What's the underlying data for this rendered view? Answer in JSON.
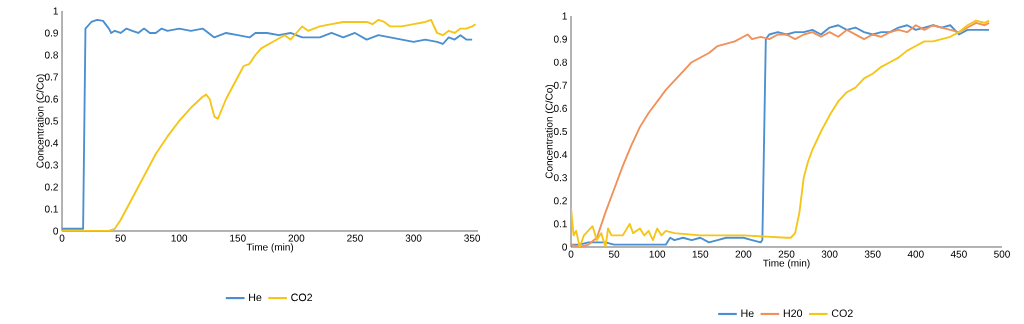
{
  "chart_data": [
    {
      "type": "line",
      "xlabel": "Time (min)",
      "ylabel": "Concentration (C/Co)",
      "xlim": [
        0,
        355
      ],
      "ylim": [
        0,
        1
      ],
      "xticks": [
        0,
        50,
        100,
        150,
        200,
        250,
        300,
        350
      ],
      "yticks": [
        0,
        0.1,
        0.2,
        0.3,
        0.4,
        0.5,
        0.6,
        0.7,
        0.8,
        0.9,
        1
      ],
      "grid": false,
      "legend": "bottom",
      "marker": "none",
      "line_style": "solid",
      "series": [
        {
          "name": "He",
          "color": "#4a90d0",
          "x": [
            0,
            10,
            18,
            20,
            25,
            30,
            35,
            40,
            42,
            45,
            50,
            55,
            60,
            65,
            70,
            75,
            80,
            85,
            90,
            100,
            110,
            120,
            125,
            130,
            140,
            150,
            160,
            165,
            175,
            185,
            195,
            205,
            220,
            230,
            240,
            250,
            260,
            270,
            280,
            290,
            300,
            310,
            320,
            325,
            330,
            335,
            340,
            345,
            350
          ],
          "values": [
            0.01,
            0.01,
            0.01,
            0.92,
            0.95,
            0.96,
            0.955,
            0.92,
            0.9,
            0.91,
            0.9,
            0.92,
            0.91,
            0.9,
            0.92,
            0.9,
            0.9,
            0.92,
            0.91,
            0.92,
            0.91,
            0.92,
            0.9,
            0.88,
            0.9,
            0.89,
            0.88,
            0.9,
            0.9,
            0.89,
            0.9,
            0.88,
            0.88,
            0.9,
            0.88,
            0.9,
            0.87,
            0.89,
            0.88,
            0.87,
            0.86,
            0.87,
            0.86,
            0.85,
            0.88,
            0.87,
            0.89,
            0.87,
            0.87
          ]
        },
        {
          "name": "CO2",
          "color": "#f5c518",
          "x": [
            0,
            20,
            40,
            45,
            50,
            60,
            70,
            80,
            90,
            100,
            110,
            120,
            123,
            126,
            130,
            133,
            140,
            150,
            155,
            160,
            165,
            170,
            180,
            190,
            195,
            200,
            205,
            210,
            220,
            230,
            240,
            250,
            260,
            265,
            270,
            275,
            280,
            290,
            300,
            310,
            315,
            320,
            325,
            330,
            335,
            340,
            345,
            350,
            353
          ],
          "values": [
            0,
            0,
            0,
            0.01,
            0.05,
            0.15,
            0.25,
            0.35,
            0.43,
            0.5,
            0.56,
            0.61,
            0.62,
            0.6,
            0.52,
            0.51,
            0.6,
            0.7,
            0.75,
            0.76,
            0.8,
            0.83,
            0.86,
            0.89,
            0.87,
            0.9,
            0.93,
            0.91,
            0.93,
            0.94,
            0.95,
            0.95,
            0.95,
            0.94,
            0.96,
            0.95,
            0.93,
            0.93,
            0.94,
            0.95,
            0.96,
            0.9,
            0.89,
            0.91,
            0.9,
            0.92,
            0.92,
            0.93,
            0.94
          ]
        }
      ]
    },
    {
      "type": "line",
      "xlabel": "Time (min)",
      "ylabel": "Concentration (C/Co)",
      "xlim": [
        0,
        500
      ],
      "ylim": [
        0,
        1
      ],
      "xticks": [
        0,
        50,
        100,
        150,
        200,
        250,
        300,
        350,
        400,
        450,
        500
      ],
      "yticks": [
        0,
        0.1,
        0.2,
        0.3,
        0.4,
        0.5,
        0.6,
        0.7,
        0.8,
        0.9,
        1
      ],
      "grid": false,
      "legend": "bottom",
      "marker": "none",
      "line_style": "solid",
      "series": [
        {
          "name": "He",
          "color": "#4a90d0",
          "x": [
            0,
            10,
            20,
            30,
            40,
            50,
            100,
            110,
            115,
            120,
            130,
            140,
            150,
            160,
            170,
            180,
            200,
            210,
            220,
            222,
            226,
            230,
            240,
            250,
            260,
            270,
            280,
            290,
            300,
            310,
            320,
            330,
            340,
            350,
            360,
            370,
            380,
            390,
            400,
            410,
            420,
            430,
            440,
            450,
            460,
            470,
            485
          ],
          "values": [
            0.01,
            0.01,
            0.02,
            0.02,
            0.02,
            0.01,
            0.01,
            0.01,
            0.04,
            0.03,
            0.04,
            0.03,
            0.04,
            0.02,
            0.03,
            0.04,
            0.04,
            0.03,
            0.02,
            0.03,
            0.9,
            0.92,
            0.93,
            0.92,
            0.93,
            0.93,
            0.94,
            0.92,
            0.95,
            0.96,
            0.94,
            0.95,
            0.93,
            0.92,
            0.93,
            0.93,
            0.95,
            0.96,
            0.94,
            0.95,
            0.96,
            0.95,
            0.96,
            0.92,
            0.94,
            0.94,
            0.94
          ]
        },
        {
          "name": "H20",
          "color": "#f0905a",
          "x": [
            0,
            10,
            20,
            30,
            40,
            50,
            60,
            70,
            80,
            90,
            100,
            110,
            120,
            130,
            140,
            150,
            160,
            170,
            180,
            190,
            200,
            205,
            210,
            220,
            230,
            240,
            250,
            260,
            270,
            280,
            290,
            300,
            310,
            320,
            330,
            340,
            350,
            360,
            370,
            380,
            390,
            400,
            410,
            420,
            430,
            440,
            450,
            460,
            470,
            480,
            485
          ],
          "values": [
            0.01,
            0,
            0.01,
            0.04,
            0.15,
            0.25,
            0.35,
            0.44,
            0.52,
            0.58,
            0.63,
            0.68,
            0.72,
            0.76,
            0.8,
            0.82,
            0.84,
            0.87,
            0.88,
            0.89,
            0.91,
            0.92,
            0.9,
            0.91,
            0.9,
            0.92,
            0.92,
            0.9,
            0.92,
            0.93,
            0.91,
            0.93,
            0.91,
            0.94,
            0.92,
            0.9,
            0.92,
            0.91,
            0.93,
            0.94,
            0.93,
            0.96,
            0.94,
            0.96,
            0.95,
            0.94,
            0.93,
            0.95,
            0.97,
            0.96,
            0.97
          ]
        },
        {
          "name": "CO2",
          "color": "#f5c518",
          "x": [
            0,
            3,
            6,
            10,
            15,
            25,
            30,
            35,
            40,
            43,
            47,
            60,
            68,
            72,
            80,
            85,
            90,
            95,
            100,
            105,
            110,
            120,
            150,
            200,
            250,
            255,
            260,
            265,
            270,
            275,
            280,
            290,
            300,
            310,
            320,
            330,
            340,
            350,
            360,
            370,
            380,
            390,
            400,
            410,
            420,
            430,
            440,
            450,
            460,
            470,
            480,
            485
          ],
          "values": [
            0.17,
            0.05,
            0.07,
            0,
            0.05,
            0.09,
            0.03,
            0.06,
            0,
            0.08,
            0.05,
            0.05,
            0.1,
            0.06,
            0.08,
            0.05,
            0.07,
            0.03,
            0.08,
            0.05,
            0.07,
            0.06,
            0.05,
            0.05,
            0.04,
            0.04,
            0.06,
            0.15,
            0.3,
            0.37,
            0.42,
            0.5,
            0.57,
            0.63,
            0.67,
            0.69,
            0.73,
            0.75,
            0.78,
            0.8,
            0.82,
            0.85,
            0.87,
            0.89,
            0.89,
            0.9,
            0.91,
            0.93,
            0.96,
            0.98,
            0.97,
            0.98
          ]
        }
      ]
    }
  ]
}
